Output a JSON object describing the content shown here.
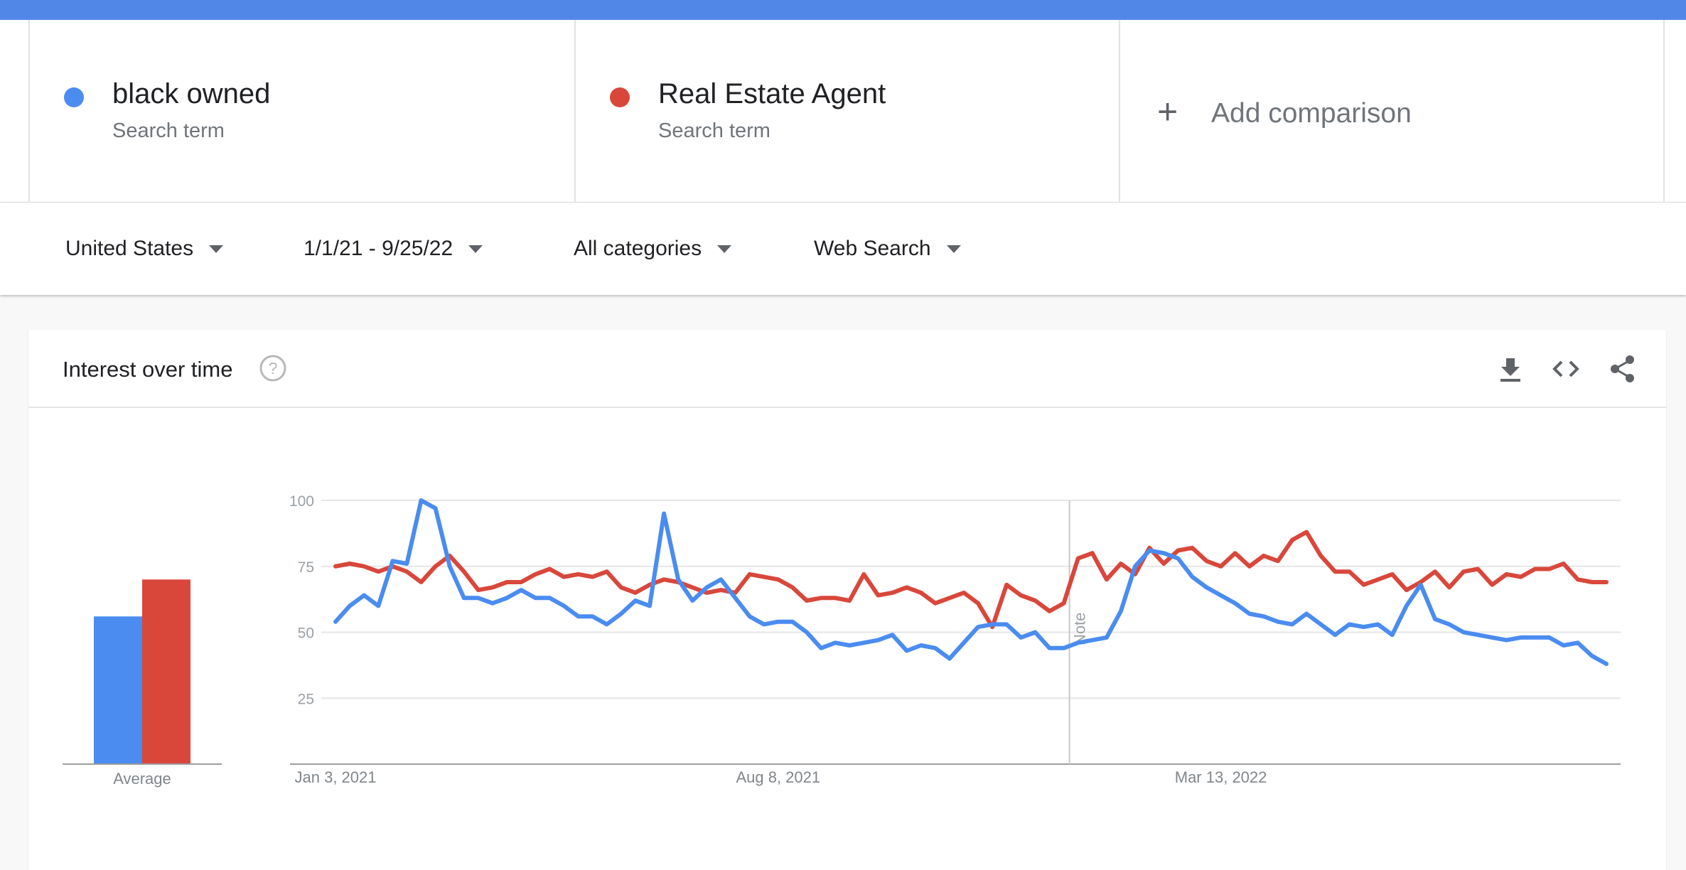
{
  "terms": [
    {
      "name": "black owned",
      "sub": "Search term",
      "color": "#4a8cf0"
    },
    {
      "name": "Real Estate Agent",
      "sub": "Search term",
      "color": "#d9473b"
    }
  ],
  "add_comparison": {
    "icon": "plus-icon",
    "label": "Add comparison"
  },
  "filters": {
    "region": "United States",
    "date_range": "1/1/21 - 9/25/22",
    "category": "All categories",
    "search_type": "Web Search"
  },
  "card": {
    "title": "Interest over time",
    "icons": [
      "help-icon",
      "download-icon",
      "embed-icon",
      "share-icon"
    ]
  },
  "chart_data": {
    "type": "line",
    "y_ticks": [
      "100",
      "75",
      "50",
      "25"
    ],
    "ylim": [
      0,
      100
    ],
    "x_tick_labels": [
      "Jan 3, 2021",
      "Aug 8, 2021",
      "Mar 13, 2022"
    ],
    "x_tick_indices": [
      0,
      31,
      62
    ],
    "note_label": "Note",
    "note_index": 51,
    "average_label": "Average",
    "averages": [
      56,
      70
    ],
    "grid": true,
    "series": [
      {
        "name": "black owned",
        "color": "#4a8cf0",
        "values": [
          54,
          60,
          64,
          60,
          77,
          76,
          100,
          97,
          75,
          63,
          63,
          61,
          63,
          66,
          63,
          63,
          60,
          56,
          56,
          53,
          57,
          62,
          60,
          95,
          70,
          62,
          67,
          70,
          63,
          56,
          53,
          54,
          54,
          50,
          44,
          46,
          45,
          46,
          47,
          49,
          43,
          45,
          44,
          40,
          46,
          52,
          53,
          53,
          48,
          50,
          44,
          44,
          46,
          47,
          48,
          58,
          75,
          81,
          80,
          78,
          71,
          67,
          64,
          61,
          57,
          56,
          54,
          53,
          57,
          53,
          49,
          53,
          52,
          53,
          49,
          60,
          68,
          55,
          53,
          50,
          49,
          48,
          47,
          48,
          48,
          48,
          45,
          46,
          41,
          38
        ]
      },
      {
        "name": "Real Estate Agent",
        "color": "#d9473b",
        "values": [
          75,
          76,
          75,
          73,
          75,
          73,
          69,
          75,
          79,
          73,
          66,
          67,
          69,
          69,
          72,
          74,
          71,
          72,
          71,
          73,
          67,
          65,
          68,
          70,
          69,
          67,
          65,
          66,
          65,
          72,
          71,
          70,
          67,
          62,
          63,
          63,
          62,
          72,
          64,
          65,
          67,
          65,
          61,
          63,
          65,
          61,
          52,
          68,
          64,
          62,
          58,
          61,
          78,
          80,
          70,
          76,
          72,
          82,
          76,
          81,
          82,
          77,
          75,
          80,
          75,
          79,
          77,
          85,
          88,
          79,
          73,
          73,
          68,
          70,
          72,
          66,
          69,
          73,
          67,
          73,
          74,
          68,
          72,
          71,
          74,
          74,
          76,
          70,
          69,
          69
        ]
      }
    ]
  }
}
